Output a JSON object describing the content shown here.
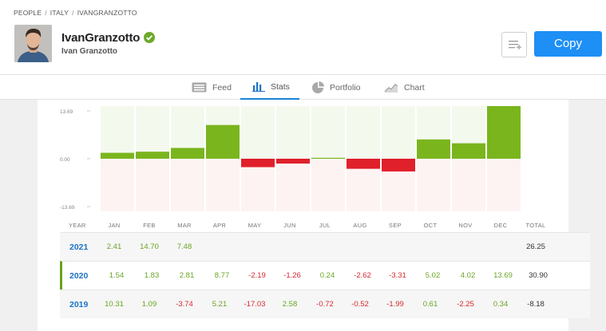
{
  "breadcrumb": [
    "PEOPLE",
    "ITALY",
    "IVANGRANZOTTO"
  ],
  "profile": {
    "username": "IvanGranzotto",
    "full_name": "Ivan Granzotto"
  },
  "actions": {
    "copy_label": "Copy"
  },
  "tabs": [
    {
      "label": "Feed",
      "icon": "feed-icon",
      "active": false
    },
    {
      "label": "Stats",
      "icon": "stats-icon",
      "active": true
    },
    {
      "label": "Portfolio",
      "icon": "portfolio-icon",
      "active": false
    },
    {
      "label": "Chart",
      "icon": "chart-icon",
      "active": false
    }
  ],
  "colors": {
    "positive": "#7ab51d",
    "negative": "#e0202a",
    "accent": "#1e8ff5",
    "link": "#1c74c7"
  },
  "chart_data": {
    "type": "bar",
    "title": "",
    "categories": [
      "JAN",
      "FEB",
      "MAR",
      "APR",
      "MAY",
      "JUN",
      "JUL",
      "AUG",
      "SEP",
      "OCT",
      "NOV",
      "DEC"
    ],
    "values": [
      1.54,
      1.83,
      2.81,
      8.77,
      -2.19,
      -1.26,
      0.24,
      -2.62,
      -3.31,
      5.02,
      4.02,
      13.69
    ],
    "ylim": [
      -13.69,
      13.69
    ],
    "yticks": [
      "13.69",
      "0.00",
      "-13.69"
    ],
    "grid": false
  },
  "table": {
    "headers": [
      "YEAR",
      "JAN",
      "FEB",
      "MAR",
      "APR",
      "MAY",
      "JUN",
      "JUL",
      "AUG",
      "SEP",
      "OCT",
      "NOV",
      "DEC",
      "TOTAL"
    ],
    "rows": [
      {
        "year": "2021",
        "values": [
          "2.41",
          "14.70",
          "7.48",
          "",
          "",
          "",
          "",
          "",
          "",
          "",
          "",
          ""
        ],
        "total": "26.25",
        "selected": false
      },
      {
        "year": "2020",
        "values": [
          "1.54",
          "1.83",
          "2.81",
          "8.77",
          "-2.19",
          "-1.26",
          "0.24",
          "-2.62",
          "-3.31",
          "5.02",
          "4.02",
          "13.69"
        ],
        "total": "30.90",
        "selected": true
      },
      {
        "year": "2019",
        "values": [
          "10.31",
          "1.09",
          "-3.74",
          "5.21",
          "-17.03",
          "2.58",
          "-0.72",
          "-0.52",
          "-1.99",
          "0.61",
          "-2.25",
          "0.34"
        ],
        "total": "-8.18",
        "selected": false
      }
    ]
  }
}
